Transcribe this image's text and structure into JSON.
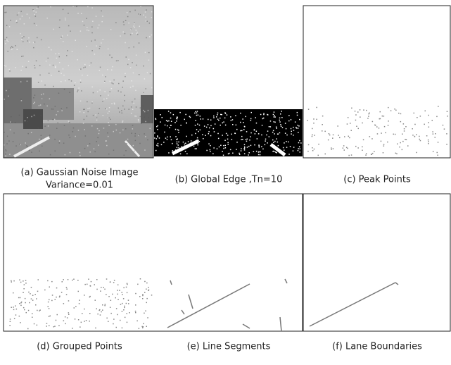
{
  "panels": [
    {
      "caption": "(a) Gaussian Noise Image",
      "caption_line2": "Variance=0.01"
    },
    {
      "caption": "(b) Global Edge ,Tn=10"
    },
    {
      "caption": "(c) Peak Points"
    },
    {
      "caption": "(d) Grouped Points"
    },
    {
      "caption": "(e) Line Segments"
    },
    {
      "caption": "(f) Lane Boundaries"
    }
  ]
}
